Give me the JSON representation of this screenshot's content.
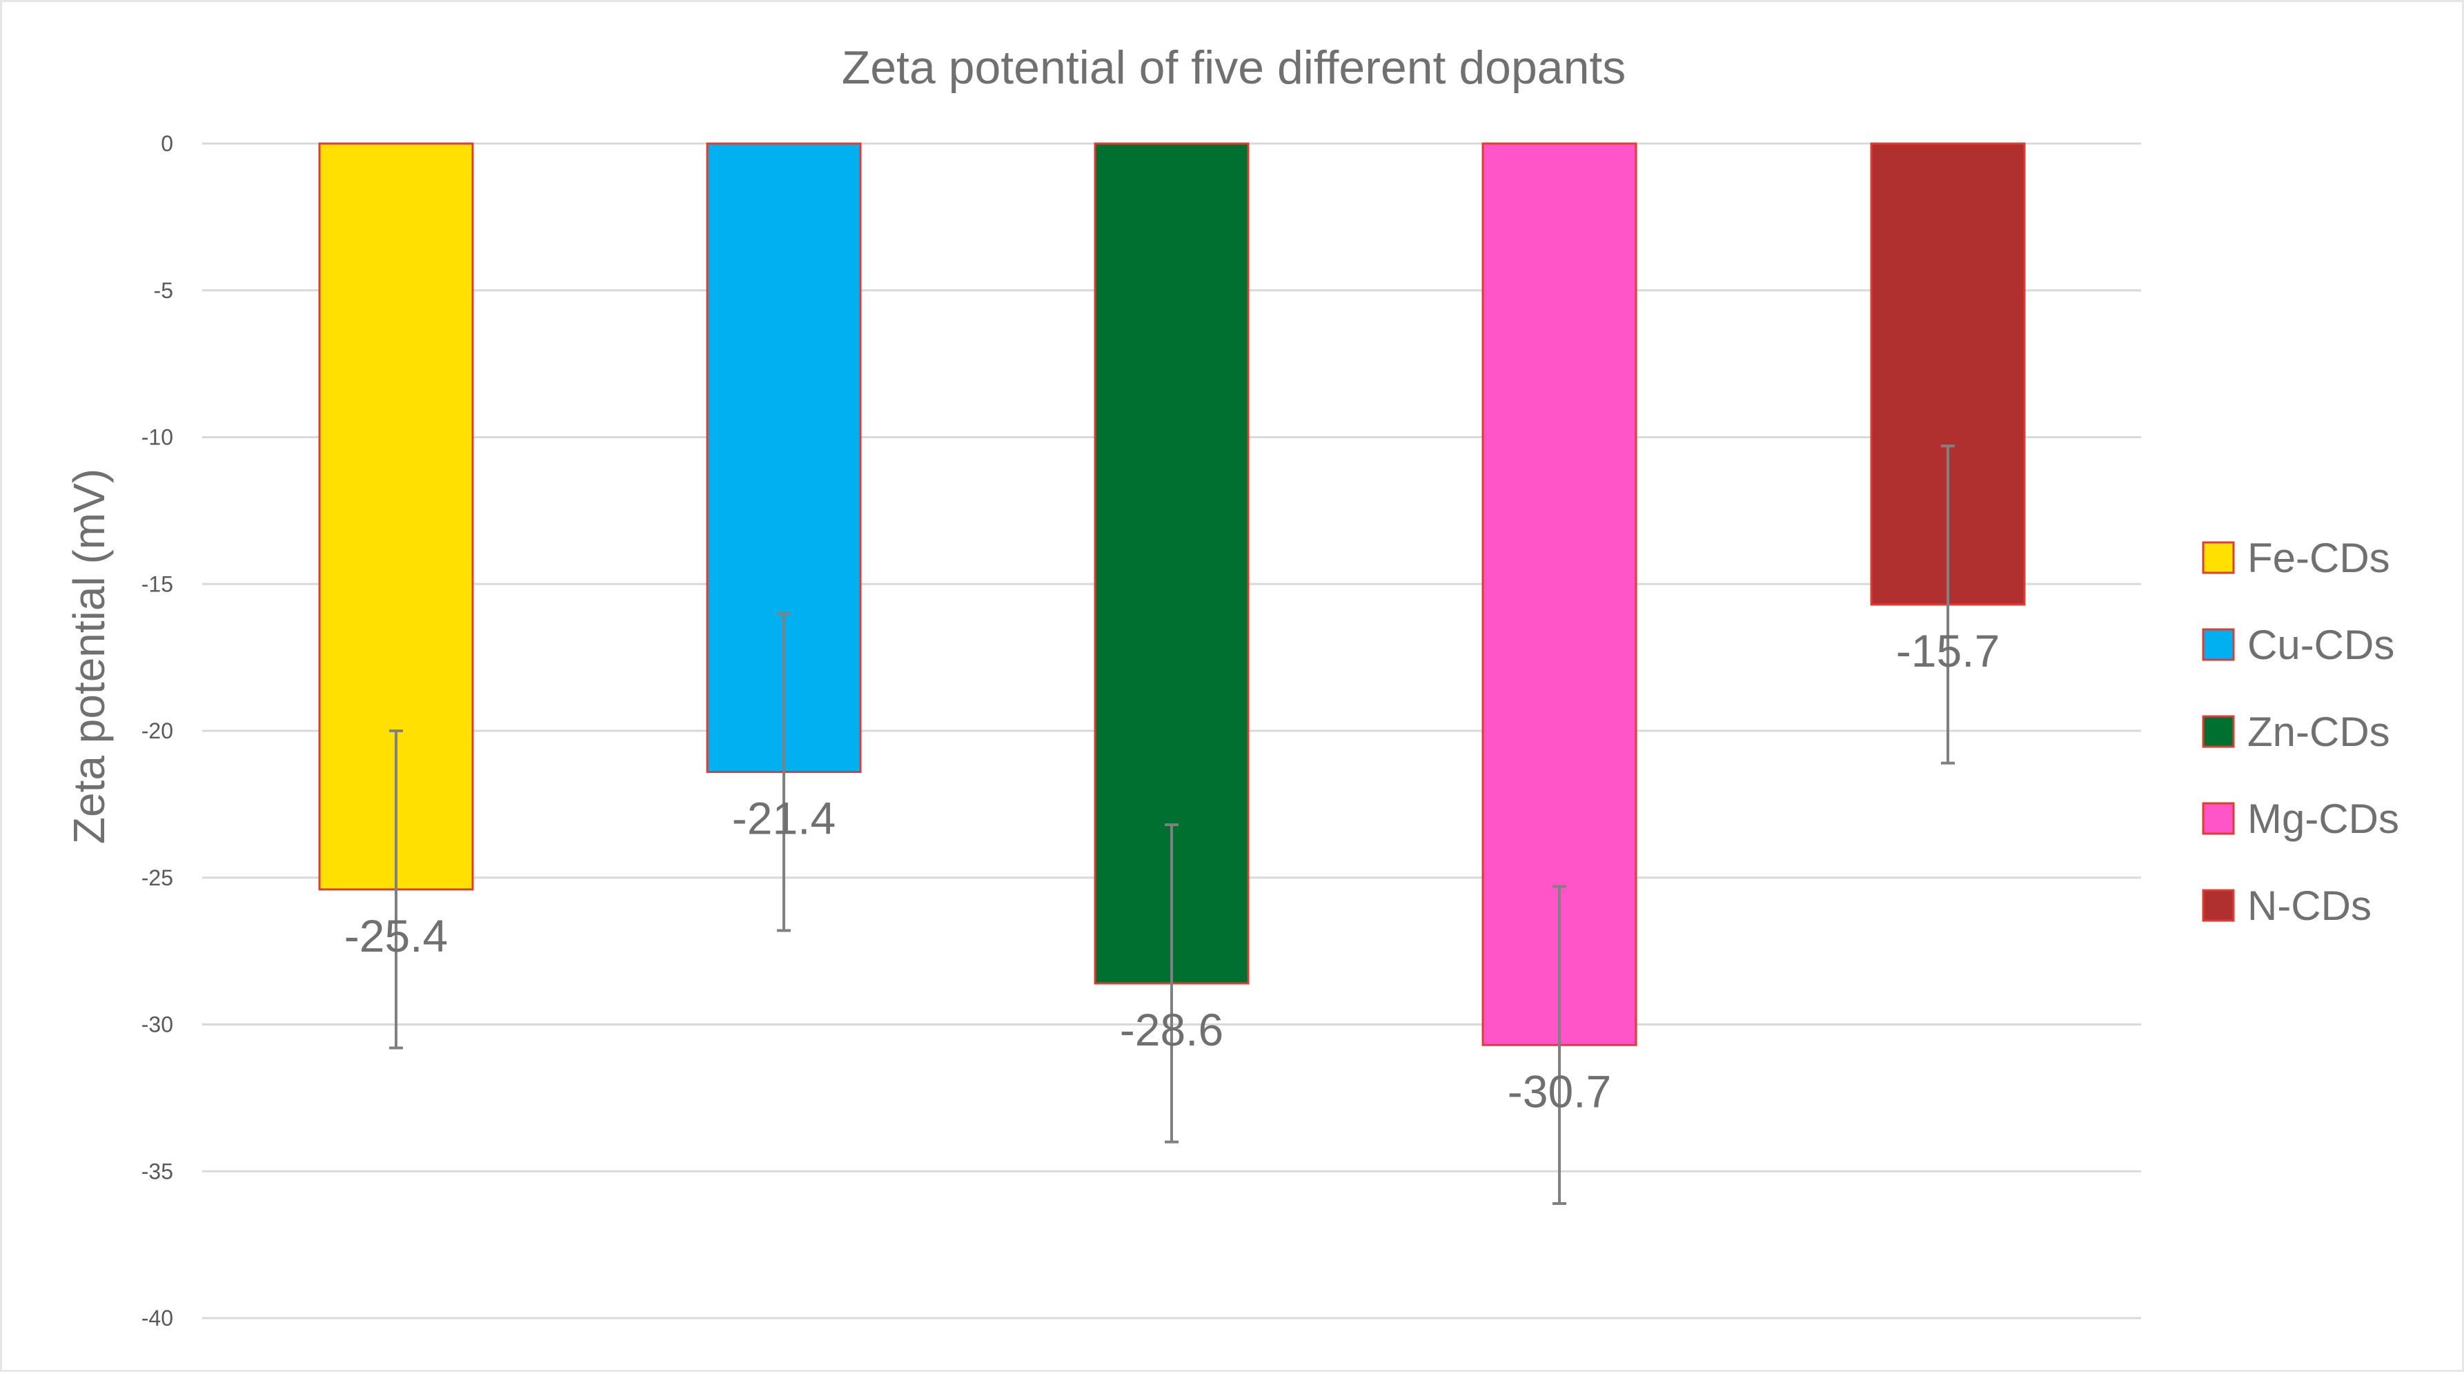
{
  "chart_data": {
    "type": "bar",
    "title": "Zeta potential of five different dopants",
    "ylabel": "Zeta potential (mV)",
    "xlabel": "",
    "ylim": [
      -40,
      0
    ],
    "yticks": [
      0,
      -5,
      -10,
      -15,
      -20,
      -25,
      -30,
      -35,
      -40
    ],
    "ytick_labels": [
      "0",
      "-5",
      "-10",
      "-15",
      "-20",
      "-25",
      "-30",
      "-35",
      "-40"
    ],
    "grid": true,
    "legend_position": "right",
    "categories": [
      "Fe-CDs",
      "Cu-CDs",
      "Zn-CDs",
      "Mg-CDs",
      "N-CDs"
    ],
    "values": [
      -25.4,
      -21.4,
      -28.6,
      -30.7,
      -15.7
    ],
    "data_labels": [
      "-25.4",
      "-21.4",
      "-28.6",
      "-30.7",
      "-15.7"
    ],
    "error_bars": [
      5.4,
      5.4,
      5.4,
      5.4,
      5.4
    ],
    "colors": [
      "#ffe000",
      "#00b0f0",
      "#007030",
      "#ff55c8",
      "#b03030"
    ],
    "bar_edge_color": "#e03c31",
    "error_bar_color": "#808080",
    "grid_color": "#d9d9d9"
  }
}
